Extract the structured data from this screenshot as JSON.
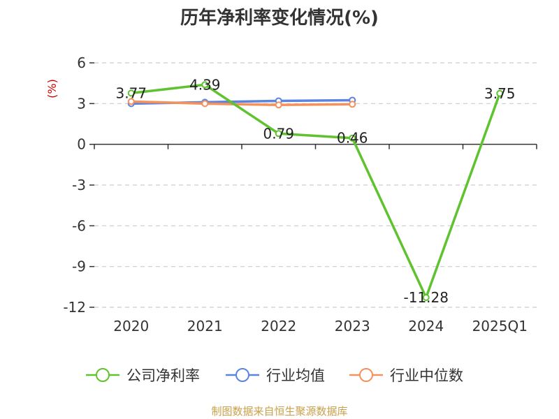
{
  "colors": {
    "company": "#5fc22f",
    "industry_avg": "#5b84e0",
    "industry_median": "#f5915a",
    "axis": "#333333",
    "grid": "#cccccc",
    "ylabel": "#cc0000",
    "source": "#c9a04a"
  },
  "chart_data": {
    "type": "line",
    "title": "历年净利率变化情况(%)",
    "ylabel": "(%)",
    "xlabel": "",
    "categories": [
      "2020",
      "2021",
      "2022",
      "2023",
      "2024",
      "2025Q1"
    ],
    "ylim": [
      -12,
      6
    ],
    "yticks": [
      6,
      3,
      0,
      -3,
      -6,
      -9,
      -12
    ],
    "ytick_labels": [
      "6",
      "3",
      "0",
      "-3",
      "-6",
      "-9",
      "-12"
    ],
    "grid": true,
    "legend_position": "bottom",
    "series": [
      {
        "name": "公司净利率",
        "values": [
          3.77,
          4.39,
          0.79,
          0.46,
          -11.28,
          3.75
        ],
        "labels": [
          "3.77",
          "4.39",
          "0.79",
          "0.46",
          "-11.28",
          "3.75"
        ]
      },
      {
        "name": "行业均值",
        "values": [
          3.0,
          3.1,
          3.2,
          3.25,
          null,
          null
        ]
      },
      {
        "name": "行业中位数",
        "values": [
          3.15,
          3.0,
          2.9,
          2.95,
          null,
          null
        ]
      }
    ]
  },
  "footer": {
    "source": "制图数据来自恒生聚源数据库"
  }
}
